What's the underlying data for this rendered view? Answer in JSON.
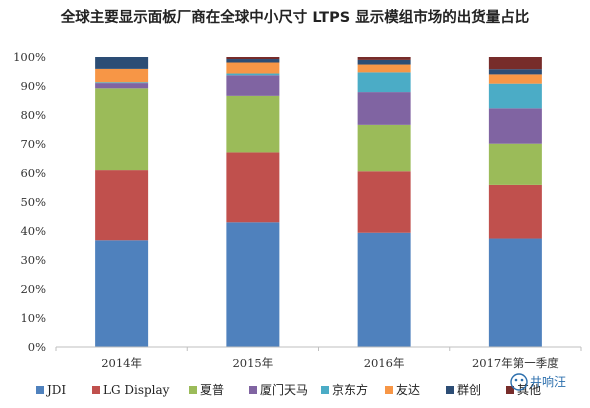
{
  "chart_data": {
    "type": "bar",
    "stacked": true,
    "title": "全球主要显示面板厂商在全球中小尺寸 LTPS 显示模组市场的出货量占比",
    "categories": [
      "2014年",
      "2015年",
      "2016年",
      "2017年第一季度"
    ],
    "ylim": [
      0,
      100
    ],
    "yticks": [
      "0%",
      "10%",
      "20%",
      "30%",
      "40%",
      "50%",
      "60%",
      "70%",
      "80%",
      "90%",
      "100%"
    ],
    "legend_position": "bottom",
    "series": [
      {
        "name": "JDI",
        "color": "#4f81bd",
        "values": [
          36.8,
          43.0,
          39.4,
          37.4
        ]
      },
      {
        "name": "LG Display",
        "color": "#c0504d",
        "values": [
          24.2,
          24.1,
          21.2,
          18.5
        ]
      },
      {
        "name": "夏普",
        "color": "#9bbb59",
        "values": [
          28.2,
          19.5,
          16.0,
          14.2
        ]
      },
      {
        "name": "厦门天马",
        "color": "#8064a2",
        "values": [
          1.8,
          7.1,
          11.3,
          12.2
        ]
      },
      {
        "name": "京东方",
        "color": "#4bacc6",
        "values": [
          0.3,
          0.6,
          6.8,
          8.5
        ]
      },
      {
        "name": "友达",
        "color": "#f79646",
        "values": [
          4.6,
          3.8,
          2.7,
          3.2
        ]
      },
      {
        "name": "群创",
        "color": "#2c4d75",
        "values": [
          4.1,
          1.2,
          1.6,
          1.8
        ]
      },
      {
        "name": "其他",
        "color": "#772c2a",
        "values": [
          0.0,
          0.7,
          1.0,
          4.2
        ]
      }
    ]
  },
  "watermark": {
    "text": "井响汪"
  }
}
